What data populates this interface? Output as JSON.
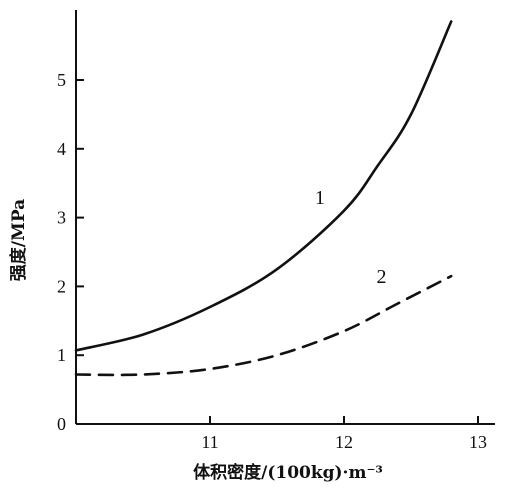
{
  "chart_data": {
    "type": "line",
    "xlabel": "体积密度/(100kg)·m⁻³",
    "ylabel": "强度/MPa",
    "xlim": [
      10,
      13.2
    ],
    "ylim": [
      0,
      6
    ],
    "xticks": [
      11,
      12,
      13
    ],
    "yticks": [
      0,
      1,
      2,
      3,
      4,
      5
    ],
    "grid": false,
    "series": [
      {
        "name": "1",
        "style": "solid",
        "x": [
          10.0,
          10.5,
          11.0,
          11.5,
          12.0,
          12.25,
          12.5,
          12.8
        ],
        "y": [
          1.07,
          1.3,
          1.7,
          2.25,
          3.1,
          3.75,
          4.5,
          5.85
        ]
      },
      {
        "name": "2",
        "style": "dashed",
        "x": [
          10.0,
          10.5,
          11.0,
          11.5,
          12.0,
          12.4,
          12.8
        ],
        "y": [
          0.72,
          0.72,
          0.8,
          1.0,
          1.35,
          1.75,
          2.15
        ]
      }
    ]
  }
}
